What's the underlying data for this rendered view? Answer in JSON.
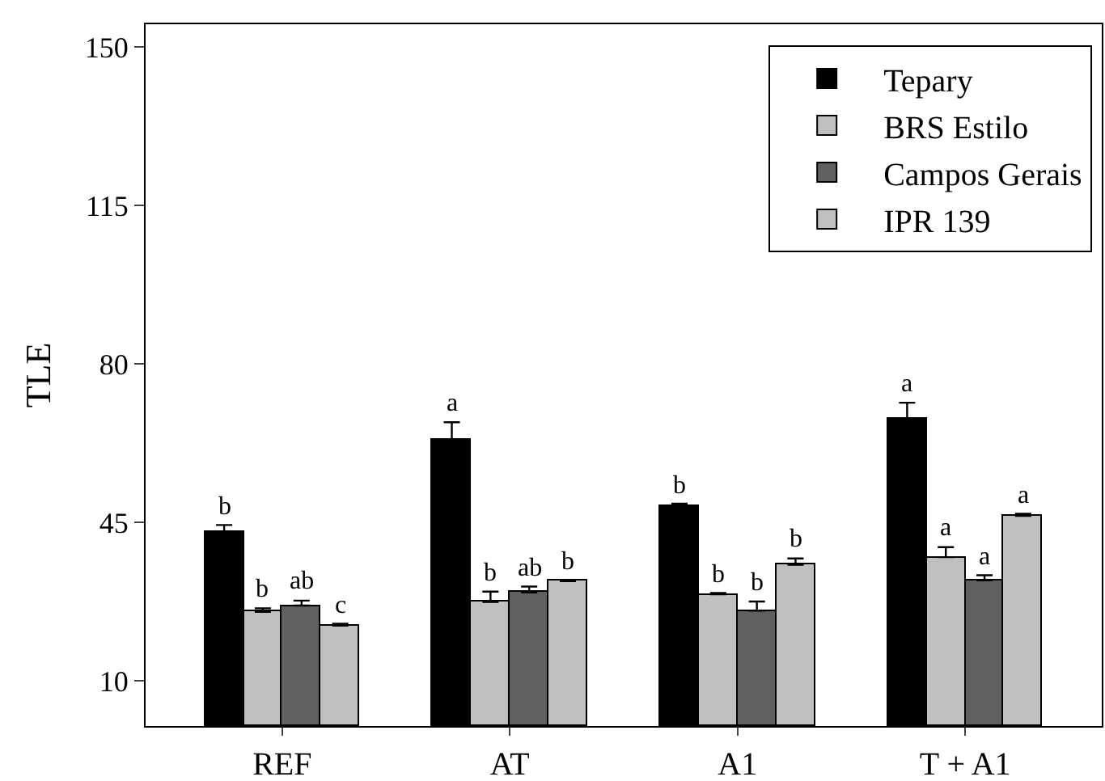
{
  "chart_data": {
    "type": "bar",
    "ylabel": "TLE",
    "categories": [
      "REF",
      "AT",
      "A1",
      "T + A1"
    ],
    "series": [
      {
        "name": "Tepary",
        "color": "#000000",
        "values": [
          42.9,
          63.3,
          48.6,
          67.7
        ],
        "errors": [
          1.5,
          3.8,
          0.5,
          3.7
        ],
        "value_labels": [
          "b",
          "a",
          "b",
          "a"
        ]
      },
      {
        "name": "BRS Estilo",
        "color": "#c0c0c0",
        "values": [
          25.2,
          27.4,
          29.1,
          37.3
        ],
        "errors": [
          0.8,
          2.3,
          0.3,
          2.2
        ],
        "value_labels": [
          "b",
          "b",
          "b",
          "a"
        ]
      },
      {
        "name": "Campos Gerais",
        "color": "#606060",
        "values": [
          26.6,
          29.5,
          25.5,
          32.2
        ],
        "errors": [
          1.1,
          1.3,
          2.0,
          1.1
        ],
        "value_labels": [
          "ab",
          "ab",
          "b",
          "a"
        ]
      },
      {
        "name": "IPR 139",
        "color": "#c0c0c0",
        "values": [
          22.2,
          32.0,
          35.6,
          46.4
        ],
        "errors": [
          0.4,
          0.3,
          1.4,
          0.5
        ],
        "value_labels": [
          "c",
          "b",
          "b",
          "a"
        ]
      }
    ],
    "ylim": [
      0,
      155
    ],
    "yticks": [
      10,
      45,
      80,
      115,
      150
    ],
    "grid": false,
    "legend": "top right"
  }
}
